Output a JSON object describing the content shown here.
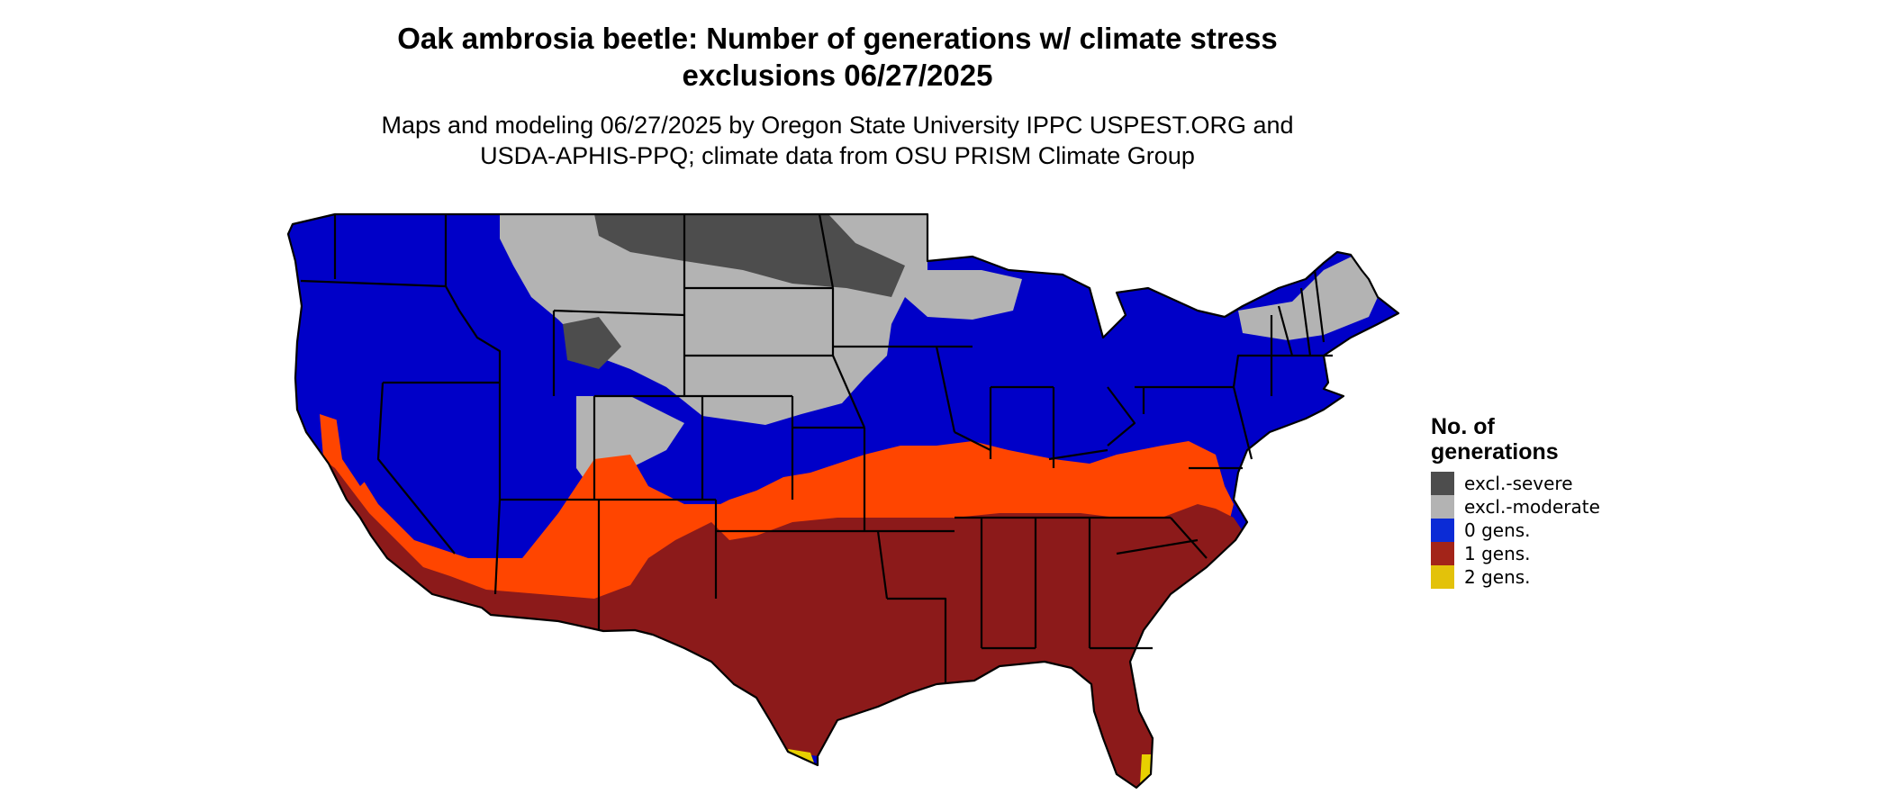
{
  "title": {
    "line1": "Oak ambrosia beetle: Number of generations w/ climate stress",
    "line2": "exclusions 06/27/2025"
  },
  "subtitle": {
    "line1": "Maps and modeling 06/27/2025 by Oregon State University IPPC USPEST.ORG and",
    "line2": "USDA-APHIS-PPQ; climate data from OSU PRISM Climate Group"
  },
  "legend": {
    "title_line1": "No. of",
    "title_line2": "generations",
    "items": [
      {
        "label": "excl.-severe",
        "color": "#4d4d4d"
      },
      {
        "label": "excl.-moderate",
        "color": "#b3b3b3"
      },
      {
        "label": "0 gens.",
        "color": "#0b2bd6"
      },
      {
        "label": "1 gens.",
        "color": "#a32419"
      },
      {
        "label": "2 gens.",
        "color": "#e3c20a"
      }
    ]
  },
  "map_colors": {
    "severe": "#4d4d4d",
    "moderate": "#b3b3b3",
    "zero": "#0000c8",
    "one": "#8c1a1a",
    "one_transition": "#ff4500",
    "two": "#e8d000",
    "border": "#000000"
  }
}
